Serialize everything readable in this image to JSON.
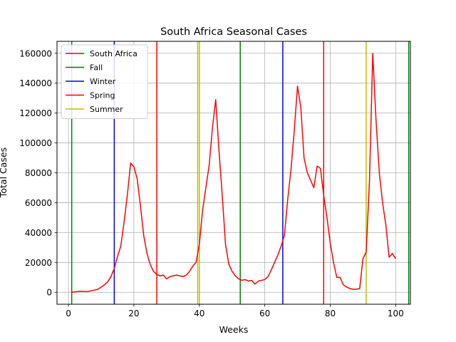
{
  "chart_data": {
    "type": "line",
    "title": "South Africa Seasonal Cases",
    "xlabel": "Weeks",
    "ylabel": "Total Cases",
    "xlim": [
      -3.5,
      104.5
    ],
    "ylim": [
      -8000,
      168000
    ],
    "xticks": [
      "0",
      "20",
      "40",
      "60",
      "80",
      "100"
    ],
    "yticks": [
      "0",
      "20000",
      "40000",
      "60000",
      "80000",
      "100000",
      "120000",
      "140000",
      "160000"
    ],
    "grid": true,
    "legend_position": "top-left",
    "series": [
      {
        "name": "South Africa",
        "color": "#ff0000",
        "x": [
          1,
          2,
          3,
          4,
          5,
          6,
          7,
          8,
          9,
          10,
          11,
          12,
          13,
          14,
          15,
          16,
          17,
          18,
          19,
          20,
          21,
          22,
          23,
          24,
          25,
          26,
          27,
          28,
          29,
          30,
          31,
          32,
          33,
          34,
          35,
          36,
          37,
          38,
          39,
          40,
          41,
          42,
          43,
          44,
          45,
          46,
          47,
          48,
          49,
          50,
          51,
          52,
          53,
          54,
          55,
          56,
          57,
          58,
          59,
          60,
          61,
          62,
          63,
          64,
          65,
          66,
          67,
          68,
          69,
          70,
          71,
          72,
          73,
          74,
          75,
          76,
          77,
          78,
          79,
          80,
          81,
          82,
          83,
          84,
          85,
          86,
          87,
          88,
          89,
          90,
          91,
          92,
          93,
          94,
          95,
          96,
          97,
          98,
          99,
          100
        ],
        "values": [
          0,
          300,
          500,
          700,
          500,
          600,
          1000,
          1500,
          2000,
          3500,
          5000,
          7000,
          10500,
          16000,
          24000,
          31000,
          47000,
          65000,
          86500,
          84000,
          76000,
          58000,
          38000,
          26000,
          18500,
          14000,
          12000,
          11000,
          11500,
          9000,
          10500,
          11000,
          11500,
          11000,
          10500,
          11500,
          14000,
          17500,
          20000,
          32000,
          55000,
          70000,
          85000,
          110000,
          129000,
          95000,
          65000,
          32000,
          19000,
          14000,
          11000,
          9000,
          8000,
          8500,
          7500,
          8000,
          5500,
          7500,
          8000,
          8500,
          10500,
          15000,
          20000,
          25000,
          31000,
          38000,
          62000,
          82000,
          108000,
          138000,
          124000,
          90000,
          80000,
          75000,
          70000,
          84500,
          83000,
          65000,
          50000,
          33000,
          20000,
          10000,
          10000,
          5000,
          3500,
          2500,
          2000,
          2000,
          2500,
          22500,
          27000,
          75000,
          160000,
          115000,
          80000,
          60000,
          45000,
          23500,
          26000,
          22500
        ]
      }
    ],
    "seasons": [
      {
        "name": "Fall",
        "color": "#008000",
        "x": [
          1,
          52.5,
          104
        ]
      },
      {
        "name": "Winter",
        "color": "#0000ff",
        "x": [
          14,
          65.5
        ]
      },
      {
        "name": "Spring",
        "color": "#ff0000",
        "x": [
          27,
          78
        ]
      },
      {
        "name": "Summer",
        "color": "#bfbf00",
        "x": [
          40,
          91
        ]
      }
    ],
    "extra_vlines": [
      {
        "x": 39.5,
        "color": "#bfbf00"
      }
    ],
    "legend": [
      "South Africa",
      "Fall",
      "Winter",
      "Spring",
      "Summer"
    ]
  }
}
